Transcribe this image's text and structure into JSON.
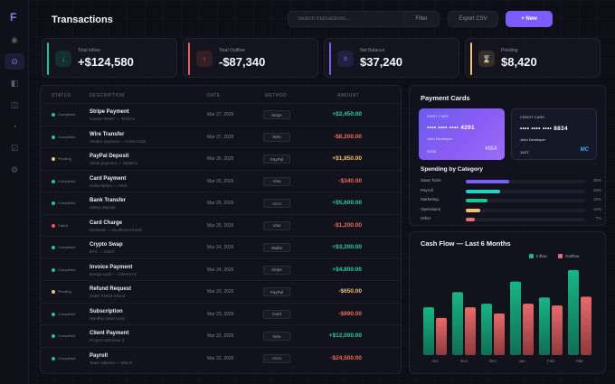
{
  "app": {
    "logo": "F",
    "title": "Transactions"
  },
  "nav": {
    "icons": [
      "dashboard-icon",
      "wallet-icon",
      "cards-icon",
      "reports-icon",
      "analytics-icon",
      "tasks-icon",
      "settings-icon"
    ],
    "glyphs": [
      "◉",
      "⊙",
      "◧",
      "◫",
      "◔",
      "☑",
      "⚙"
    ],
    "active": 1
  },
  "toolbar": {
    "search_placeholder": "Search transactions...",
    "filter_label": "Filter",
    "export_label": "Export CSV",
    "new_label": "+ New"
  },
  "stats": [
    {
      "label": "Total Inflow",
      "value": "+$124,580",
      "icon": "↓",
      "color": "#19c98e"
    },
    {
      "label": "Total Outflow",
      "value": "-$87,340",
      "icon": "↑",
      "color": "#ef5b5b"
    },
    {
      "label": "Net Balance",
      "value": "$37,240",
      "icon": "=",
      "color": "#7c5cff"
    },
    {
      "label": "Pending",
      "value": "$8,420",
      "icon": "⌛",
      "color": "#f5c063"
    }
  ],
  "table": {
    "headers": {
      "status": "STATUS",
      "description": "DESCRIPTION",
      "date": "DATE",
      "method": "METHOD",
      "amount": "AMOUNT"
    },
    "rows": [
      {
        "status": "Completed",
        "desc": "Stripe Payment",
        "sub": "Invoice #0487 — TechCo",
        "date": "Mar 27, 2026",
        "method": "Stripe",
        "amount": "+$2,450.00",
        "type": "in"
      },
      {
        "status": "Completed",
        "desc": "Wire Transfer",
        "sub": "Vendor payment — Acme Corp",
        "date": "Mar 27, 2026",
        "method": "Wire",
        "amount": "-$8,200.00",
        "type": "out"
      },
      {
        "status": "Pending",
        "desc": "PayPal Deposit",
        "sub": "Client payment — WebPro",
        "date": "Mar 26, 2026",
        "method": "PayPal",
        "amount": "+$1,850.00",
        "type": "pending"
      },
      {
        "status": "Completed",
        "desc": "Card Payment",
        "sub": "Subscription — AWS",
        "date": "Mar 26, 2026",
        "method": "Visa",
        "amount": "-$340.00",
        "type": "out"
      },
      {
        "status": "Completed",
        "desc": "Bank Transfer",
        "sub": "Salary deposit",
        "date": "Mar 25, 2026",
        "method": "ACH",
        "amount": "+$5,600.00",
        "type": "in"
      },
      {
        "status": "Failed",
        "desc": "Card Charge",
        "sub": "Declined — insufficient funds",
        "date": "Mar 25, 2026",
        "method": "Visa",
        "amount": "-$1,200.00",
        "type": "out"
      },
      {
        "status": "Completed",
        "desc": "Crypto Swap",
        "sub": "BTC → USDT",
        "date": "Mar 24, 2026",
        "method": "Wallet",
        "amount": "+$3,200.00",
        "type": "in"
      },
      {
        "status": "Completed",
        "desc": "Invoice Payment",
        "sub": "Design work — ClientXYZ",
        "date": "Mar 24, 2026",
        "method": "Stripe",
        "amount": "+$4,800.00",
        "type": "in"
      },
      {
        "status": "Pending",
        "desc": "Refund Request",
        "sub": "Order #1923 refund",
        "date": "Mar 23, 2026",
        "method": "PayPal",
        "amount": "-$650.00",
        "type": "pending"
      },
      {
        "status": "Completed",
        "desc": "Subscription",
        "sub": "Monthly SaaS tools",
        "date": "Mar 23, 2026",
        "method": "Card",
        "amount": "-$890.00",
        "type": "out"
      },
      {
        "status": "Completed",
        "desc": "Client Payment",
        "sub": "Project milestone 3",
        "date": "Mar 22, 2026",
        "method": "Wire",
        "amount": "+$12,000.00",
        "type": "in"
      },
      {
        "status": "Completed",
        "desc": "Payroll",
        "sub": "Team salaries — March",
        "date": "Mar 22, 2026",
        "method": "ACH",
        "amount": "-$24,500.00",
        "type": "out"
      }
    ]
  },
  "status_colors": {
    "Completed": "#19c98e",
    "Pending": "#f5c063",
    "Failed": "#ef5b5b"
  },
  "amount_colors": {
    "in": "#22d39a",
    "out": "#ef6a5b",
    "pending": "#f5c063"
  },
  "payment_cards": {
    "title": "Payment Cards",
    "cards": [
      {
        "label": "DEBIT CARD",
        "number": "•••• •••• •••• 4291",
        "holder": "John Developer",
        "expiry": "09/28",
        "brand": "VISA",
        "brand_color": "#d9d2ff"
      },
      {
        "label": "CREDIT CARD",
        "number": "•••• •••• •••• 8834",
        "holder": "John Developer",
        "expiry": "11/27",
        "brand": "MC",
        "brand_color": "#3ab7ff"
      }
    ]
  },
  "spending": {
    "title": "Spending by Category",
    "items": [
      {
        "name": "SaaS Tools",
        "pct": 35,
        "label": "35%",
        "color": "#7c5cff"
      },
      {
        "name": "Payroll",
        "pct": 28,
        "label": "28%",
        "color": "#22d3c5"
      },
      {
        "name": "Marketing",
        "pct": 18,
        "label": "18%",
        "color": "#19c98e"
      },
      {
        "name": "Operations",
        "pct": 12,
        "label": "12%",
        "color": "#f5c063"
      },
      {
        "name": "Other",
        "pct": 7,
        "label": "7%",
        "color": "#ef6a6a"
      }
    ]
  },
  "cashflow": {
    "title": "Cash Flow — Last 6 Months",
    "legend": {
      "inflow": "Inflow",
      "outflow": "Outflow"
    },
    "colors": {
      "inflow": "#17b585",
      "outflow": "#e76a6a"
    }
  },
  "chart_data": {
    "type": "bar",
    "categories": [
      "Oct",
      "Nov",
      "Dec",
      "Jan",
      "Feb",
      "Mar"
    ],
    "series": [
      {
        "name": "Inflow",
        "values": [
          54,
          71,
          58,
          83,
          65,
          96
        ]
      },
      {
        "name": "Outflow",
        "values": [
          42,
          54,
          47,
          58,
          56,
          66
        ]
      }
    ],
    "ylim": [
      0,
      100
    ],
    "legend": "top-right",
    "grid": false
  }
}
